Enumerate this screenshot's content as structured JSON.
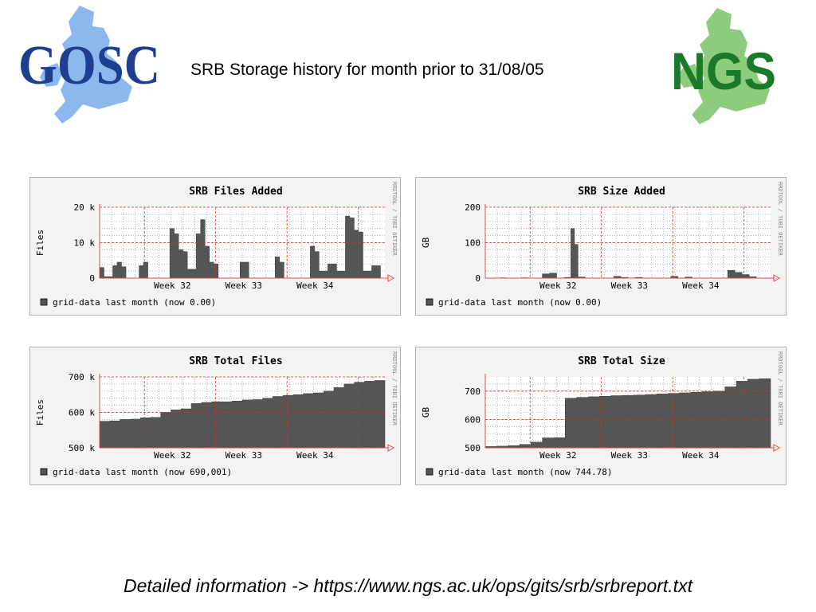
{
  "title": "SRB Storage history for month prior to 31/08/05",
  "logos": {
    "left": {
      "text": "GOSC",
      "color": "#1e3f8f",
      "map_color": "#8cb8ee"
    },
    "right": {
      "text": "NGS",
      "color": "#1a7a2a",
      "map_color": "#8ccc7c"
    }
  },
  "footer": {
    "text": "Detailed information -> https://www.ngs.ac.uk/ops/gits/srb/srbreport.txt"
  },
  "colors": {
    "frame_bg": "#f3f3f3",
    "frame_border": "#b0b0b0",
    "area_fill": "#555555",
    "major_grid": "#cc3333",
    "minor_grid": "#888888",
    "axis_arrow": "#ee4444"
  },
  "chart_data": [
    {
      "type": "area",
      "title": "SRB Files Added",
      "ylabel": "Files",
      "ylim": [
        0,
        20000
      ],
      "y_ticks": [
        {
          "value": 0,
          "label": "0"
        },
        {
          "value": 10000,
          "label": "10 k"
        },
        {
          "value": 20000,
          "label": "20 k"
        }
      ],
      "x_ticks": [
        "Week 32",
        "Week 33",
        "Week 34"
      ],
      "watermark": "RRDTOOL / TOBI OETIKER",
      "legend": [
        {
          "label": "grid-data last month (now 0.00)"
        }
      ],
      "series": [
        {
          "values": [
            3000,
            400,
            400,
            3500,
            4500,
            3200,
            0,
            0,
            0,
            3500,
            4500,
            0,
            0,
            0,
            0,
            0,
            14000,
            12500,
            8000,
            7500,
            2500,
            2500,
            12500,
            16500,
            9000,
            4500,
            4000,
            0,
            0,
            0,
            0,
            0,
            4500,
            4500,
            0,
            0,
            0,
            0,
            0,
            0,
            6000,
            4500,
            0,
            0,
            0,
            0,
            0,
            0,
            9000,
            7500,
            2000,
            2000,
            4000,
            4000,
            2000,
            2000,
            17500,
            17000,
            13500,
            13000,
            2000,
            2000,
            3500,
            3500,
            0
          ]
        }
      ]
    },
    {
      "type": "area",
      "title": "SRB Size Added",
      "ylabel": "GB",
      "ylim": [
        0,
        200
      ],
      "y_ticks": [
        {
          "value": 0,
          "label": "0"
        },
        {
          "value": 100,
          "label": "100"
        },
        {
          "value": 200,
          "label": "200"
        }
      ],
      "x_ticks": [
        "Week 32",
        "Week 33",
        "Week 34"
      ],
      "watermark": "RRDTOOL / TOBI OETIKER",
      "legend": [
        {
          "label": "grid-data last month (now 0.00)"
        }
      ],
      "series": [
        {
          "values": [
            0,
            0,
            0,
            0,
            1,
            1,
            0,
            0,
            0,
            0,
            1,
            1,
            0,
            0,
            0,
            0,
            12,
            12,
            14,
            14,
            0,
            0,
            2,
            2,
            140,
            95,
            3,
            3,
            0,
            0,
            0,
            0,
            0,
            0,
            0,
            0,
            5,
            5,
            2,
            2,
            0,
            0,
            2,
            2,
            0,
            0,
            0,
            0,
            0,
            0,
            0,
            0,
            5,
            5,
            0,
            0,
            3,
            3,
            0,
            0,
            0,
            0,
            0,
            0,
            0,
            0,
            0,
            0,
            22,
            22,
            16,
            16,
            10,
            10,
            4,
            4,
            0,
            0,
            0,
            0
          ]
        }
      ]
    },
    {
      "type": "area",
      "title": "SRB Total Files",
      "ylabel": "Files",
      "ylim": [
        500000,
        700000
      ],
      "y_ticks": [
        {
          "value": 500000,
          "label": "500 k"
        },
        {
          "value": 600000,
          "label": "600 k"
        },
        {
          "value": 700000,
          "label": "700 k"
        }
      ],
      "x_ticks": [
        "Week 32",
        "Week 33",
        "Week 34"
      ],
      "watermark": "RRDTOOL / TOBI OETIKER",
      "legend": [
        {
          "label": "grid-data last month (now 690,001)"
        }
      ],
      "series": [
        {
          "values": [
            575000,
            575000,
            576000,
            576000,
            580000,
            580000,
            581000,
            581000,
            585000,
            585000,
            586000,
            586000,
            600000,
            600000,
            607000,
            607000,
            610000,
            610000,
            625000,
            625000,
            628000,
            628000,
            630000,
            630000,
            630000,
            630000,
            632000,
            632000,
            635000,
            635000,
            636000,
            636000,
            640000,
            640000,
            645000,
            645000,
            648000,
            648000,
            650000,
            650000,
            653000,
            653000,
            655000,
            655000,
            660000,
            660000,
            670000,
            670000,
            680000,
            680000,
            685000,
            685000,
            688000,
            688000,
            690000,
            690000
          ]
        }
      ]
    },
    {
      "type": "area",
      "title": "SRB Total Size",
      "ylabel": "GB",
      "ylim": [
        500,
        750
      ],
      "y_ticks": [
        {
          "value": 500,
          "label": "500"
        },
        {
          "value": 600,
          "label": "600"
        },
        {
          "value": 700,
          "label": "700"
        }
      ],
      "x_ticks": [
        "Week 32",
        "Week 33",
        "Week 34"
      ],
      "watermark": "RRDTOOL / TOBI OETIKER",
      "legend": [
        {
          "label": "grid-data last month (now 744.78)"
        }
      ],
      "series": [
        {
          "values": [
            505,
            505,
            506,
            506,
            508,
            508,
            512,
            512,
            520,
            520,
            535,
            535,
            536,
            536,
            675,
            675,
            678,
            678,
            680,
            680,
            682,
            682,
            684,
            684,
            685,
            685,
            686,
            686,
            688,
            688,
            690,
            690,
            692,
            692,
            694,
            694,
            696,
            696,
            698,
            698,
            700,
            700,
            715,
            715,
            735,
            735,
            742,
            742,
            744,
            744
          ]
        }
      ]
    }
  ]
}
